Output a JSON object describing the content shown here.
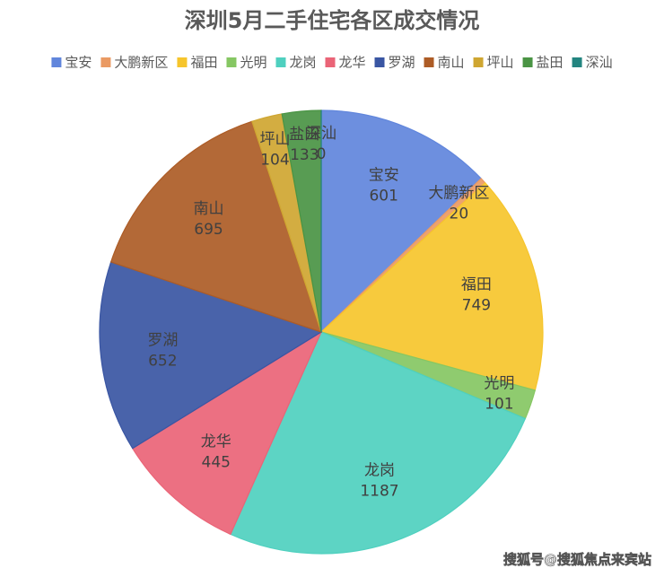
{
  "chart_data": {
    "type": "pie",
    "title": "深圳5月二手住宅各区成交情况",
    "categories": [
      "宝安",
      "大鹏新区",
      "福田",
      "光明",
      "龙岗",
      "龙华",
      "罗湖",
      "南山",
      "坪山",
      "盐田",
      "深汕"
    ],
    "values": [
      601,
      20,
      749,
      101,
      1187,
      445,
      652,
      695,
      104,
      133,
      0
    ],
    "colors": [
      "#6186dc",
      "#ea9a63",
      "#f6c52c",
      "#86c763",
      "#4fd0bf",
      "#ea6477",
      "#3a56a3",
      "#ad5c26",
      "#cfa631",
      "#4a9444",
      "#238580"
    ],
    "legend": "top",
    "watermark": "搜狐号@搜狐焦点来宾站"
  }
}
